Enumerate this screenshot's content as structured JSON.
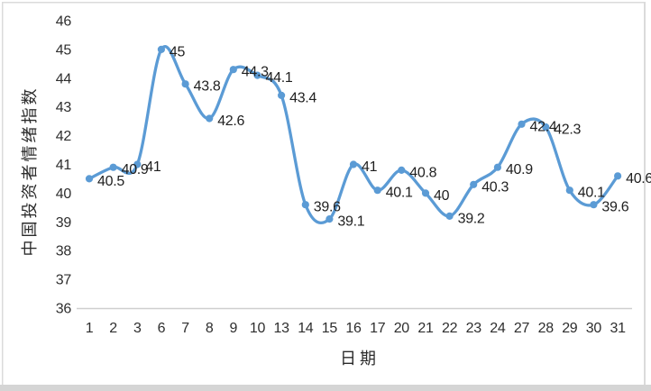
{
  "page": {
    "background": "#ffffff"
  },
  "chart_data": {
    "type": "line",
    "title": "",
    "xlabel": "日期",
    "ylabel": "中国投资者情绪指数",
    "categories": [
      "1",
      "2",
      "3",
      "6",
      "7",
      "8",
      "9",
      "10",
      "13",
      "14",
      "15",
      "16",
      "17",
      "20",
      "21",
      "22",
      "23",
      "24",
      "27",
      "28",
      "29",
      "30",
      "31"
    ],
    "values": [
      40.5,
      40.9,
      41,
      45,
      43.8,
      42.6,
      44.3,
      44.1,
      43.4,
      39.6,
      39.1,
      41,
      40.1,
      40.8,
      40,
      39.2,
      40.3,
      40.9,
      42.4,
      42.3,
      40.1,
      39.6,
      40.6
    ],
    "data_labels": [
      "40.5",
      "40.9",
      "41",
      "45",
      "43.8",
      "42.6",
      "44.3",
      "44.1",
      "43.4",
      "39.6",
      "39.1",
      "41",
      "40.1",
      "40.8",
      "40",
      "39.2",
      "40.3",
      "40.9",
      "42.4",
      "42.3",
      "40.1",
      "39.6",
      "40.6"
    ],
    "y_ticks": [
      46,
      45,
      44,
      43,
      42,
      41,
      40,
      39,
      38,
      37,
      36
    ],
    "ylim": [
      36,
      46
    ],
    "grid": false,
    "legend": "none",
    "smooth": true,
    "marker": "circle",
    "colors": {
      "series": "#5B9BD5",
      "axis_line": "#CFCFCF",
      "tick_text": "#2E2E2E",
      "label_text": "#1F1F1F",
      "frame_border": "#DBDBDB",
      "bottom_bar": "#D5D5D5"
    }
  }
}
